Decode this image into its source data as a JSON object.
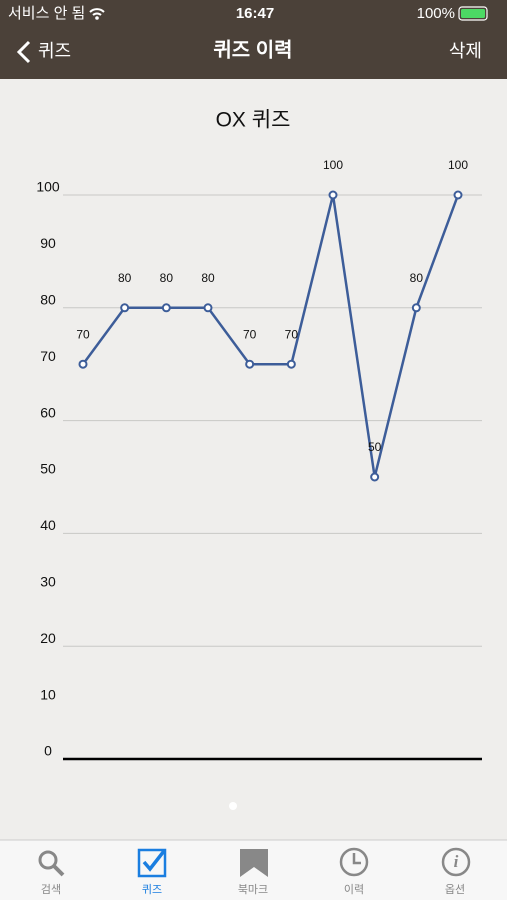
{
  "status_bar": {
    "carrier": "서비스 안 됨",
    "time": "16:47",
    "battery": "100%"
  },
  "nav": {
    "back": "퀴즈",
    "title": "퀴즈 이력",
    "action": "삭제"
  },
  "chart_data": {
    "type": "line",
    "title": "OX 퀴즈",
    "values": [
      70,
      80,
      80,
      80,
      70,
      70,
      100,
      50,
      80,
      100
    ],
    "color": "#3d5d99",
    "ylim": [
      0,
      100
    ],
    "yticks": [
      0,
      10,
      20,
      30,
      40,
      50,
      60,
      70,
      80,
      90,
      100
    ],
    "grid": true
  },
  "tab_bar": {
    "tabs": [
      "검색",
      "퀴즈",
      "북마크",
      "이력",
      "옵션"
    ]
  }
}
